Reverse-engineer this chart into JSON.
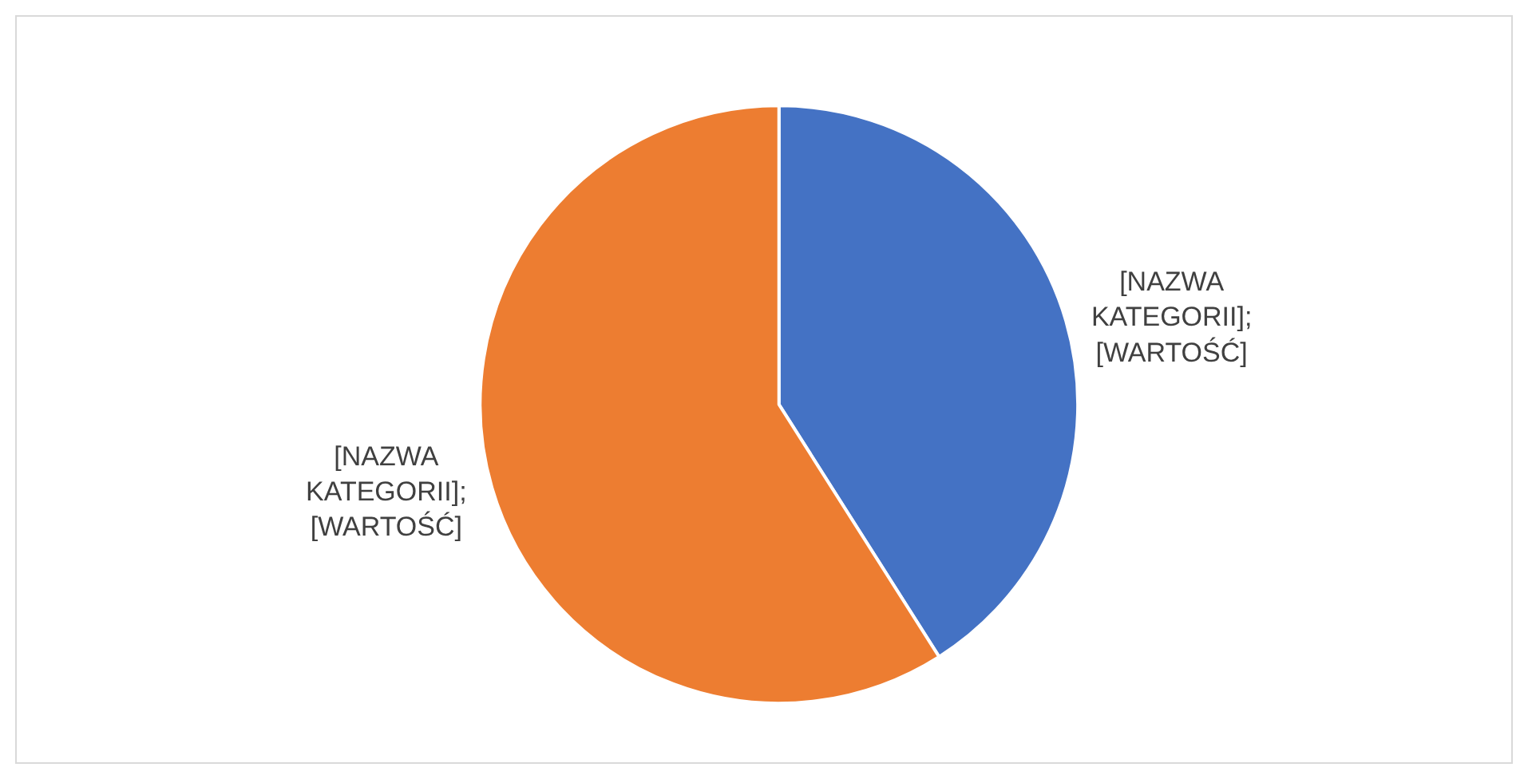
{
  "chart_data": {
    "type": "pie",
    "categories": [
      null,
      null
    ],
    "values": [
      41,
      59
    ],
    "colors": [
      "#4472c4",
      "#ed7d31"
    ],
    "value_labels": [
      "[NAZWA KATEGORII]; [WARTOŚĆ]",
      "[NAZWA KATEGORII]; [WARTOŚĆ]"
    ],
    "legend": false
  }
}
